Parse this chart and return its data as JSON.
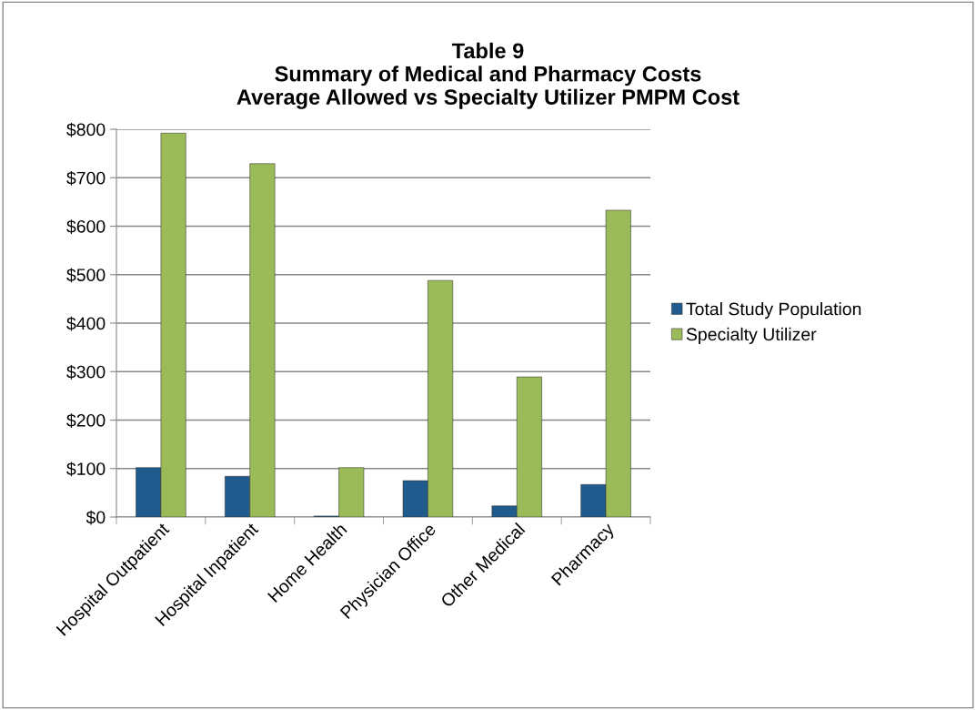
{
  "chart_data": {
    "type": "bar",
    "title": "Table 9\nSummary of Medical and Pharmacy Costs\nAverage Allowed vs Specialty Utilizer PMPM Cost",
    "categories": [
      "Hospital Outpatient",
      "Hospital Inpatient",
      "Home Health",
      "Physician Office",
      "Other Medical",
      "Pharmacy"
    ],
    "series": [
      {
        "name": "Total Study Population",
        "color": "#1f5b8c",
        "values": [
          102,
          84,
          2,
          75,
          23,
          67
        ]
      },
      {
        "name": "Specialty Utilizer",
        "color": "#9bbb59",
        "values": [
          792,
          729,
          102,
          488,
          289,
          633
        ]
      }
    ],
    "ylim": [
      0,
      800
    ],
    "yticks": [
      {
        "value": 0,
        "label": "$0"
      },
      {
        "value": 100,
        "label": "$100"
      },
      {
        "value": 200,
        "label": "$200"
      },
      {
        "value": 300,
        "label": "$300"
      },
      {
        "value": 400,
        "label": "$400"
      },
      {
        "value": 500,
        "label": "$500"
      },
      {
        "value": 600,
        "label": "$600"
      },
      {
        "value": 700,
        "label": "$700"
      },
      {
        "value": 800,
        "label": "$800"
      }
    ],
    "grid": "y",
    "legend": "right"
  }
}
